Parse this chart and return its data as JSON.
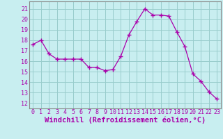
{
  "x": [
    0,
    1,
    2,
    3,
    4,
    5,
    6,
    7,
    8,
    9,
    10,
    11,
    12,
    13,
    14,
    15,
    16,
    17,
    18,
    19,
    20,
    21,
    22,
    23
  ],
  "y": [
    17.6,
    18.0,
    16.7,
    16.2,
    16.2,
    16.2,
    16.2,
    15.4,
    15.4,
    15.1,
    15.2,
    16.5,
    18.5,
    19.8,
    21.0,
    20.4,
    20.4,
    20.3,
    18.8,
    17.4,
    14.8,
    14.1,
    13.1,
    12.4
  ],
  "line_color": "#aa00aa",
  "marker": "P",
  "marker_size": 2.5,
  "background_color": "#c8eef0",
  "grid_color": "#99cccc",
  "xlabel": "Windchill (Refroidissement éolien,°C)",
  "xlabel_color": "#aa00aa",
  "ylabel_ticks": [
    12,
    13,
    14,
    15,
    16,
    17,
    18,
    19,
    20,
    21
  ],
  "xlim": [
    -0.5,
    23.5
  ],
  "ylim": [
    11.5,
    21.7
  ],
  "xtick_labels": [
    "0",
    "1",
    "2",
    "3",
    "4",
    "5",
    "6",
    "7",
    "8",
    "9",
    "10",
    "11",
    "12",
    "13",
    "14",
    "15",
    "16",
    "17",
    "18",
    "19",
    "20",
    "21",
    "22",
    "23"
  ],
  "tick_color": "#aa00aa",
  "tick_fontsize": 6,
  "xlabel_fontsize": 7.5,
  "spine_color": "#888888"
}
